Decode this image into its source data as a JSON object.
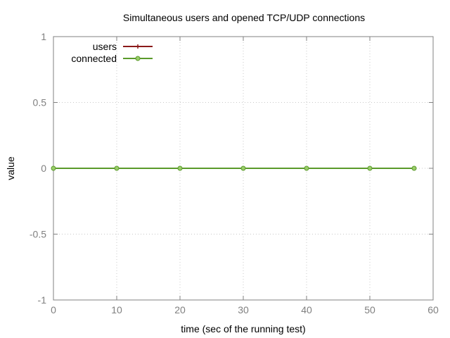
{
  "chart_data": {
    "type": "line",
    "title": "Simultaneous users and opened TCP/UDP connections",
    "xlabel": "time (sec of the running test)",
    "ylabel": "value",
    "xlim": [
      0,
      60
    ],
    "ylim": [
      -1,
      1
    ],
    "x_ticks": [
      "0",
      "10",
      "20",
      "30",
      "40",
      "50",
      "60"
    ],
    "y_ticks": [
      "-1",
      "-0.5",
      "0",
      "0.5",
      "1"
    ],
    "grid": true,
    "legend_position": "top-left",
    "series": [
      {
        "name": "users",
        "color": "#8b1a1a",
        "marker": "plus",
        "x": [
          0,
          10,
          20,
          30,
          40,
          50,
          57
        ],
        "y": [
          0,
          0,
          0,
          0,
          0,
          0,
          0
        ]
      },
      {
        "name": "connected",
        "color": "#5a9a2a",
        "marker": "circle",
        "x": [
          0,
          10,
          20,
          30,
          40,
          50,
          57
        ],
        "y": [
          0,
          0,
          0,
          0,
          0,
          0,
          0
        ]
      }
    ]
  }
}
